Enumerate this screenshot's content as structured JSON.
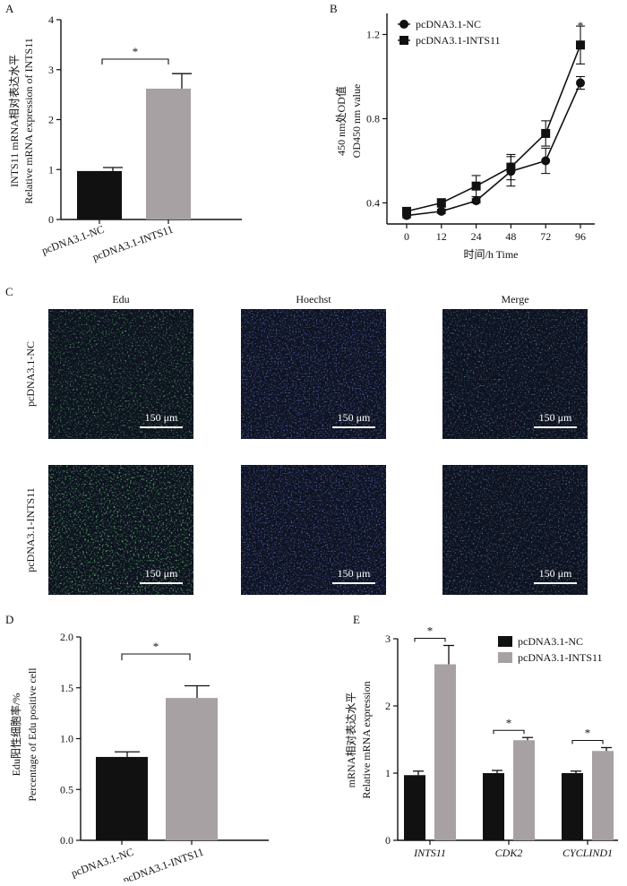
{
  "colors": {
    "nc": "#111111",
    "ints": "#a7a1a3",
    "edu_green": "#2fa03a",
    "hoechst_blue": "#2a3bd0",
    "micro_bg": "#0e1220"
  },
  "panels": {
    "A": {
      "letter": "A",
      "sig": "*"
    },
    "B": {
      "letter": "B",
      "sig": "*"
    },
    "C": {
      "letter": "C",
      "columns": [
        "Edu",
        "Hoechst",
        "Merge"
      ],
      "rows": [
        "pcDNA3.1-NC",
        "pcDNA3.1-INTS11"
      ],
      "scale_label": "150 μm",
      "stain_colors": [
        "edu_green",
        "hoechst_blue",
        "merge"
      ]
    },
    "D": {
      "letter": "D",
      "sig": "*"
    },
    "E": {
      "letter": "E",
      "sig": "*"
    }
  },
  "chart_data": [
    {
      "id": "A",
      "type": "bar",
      "categories": [
        "pcDNA3.1-NC",
        "pcDNA3.1-INTS11"
      ],
      "values": [
        0.97,
        2.62
      ],
      "errors": [
        0.07,
        0.3
      ],
      "ylabel_cn": "INTS11 mRNA相对表达水平",
      "ylabel_en": "Relative mRNA expression of INTS11",
      "ylim": [
        0,
        4
      ],
      "yticks": [
        0,
        1,
        2,
        3,
        4
      ],
      "significance": "*"
    },
    {
      "id": "B",
      "type": "line",
      "x": [
        0,
        12,
        24,
        48,
        72,
        96
      ],
      "xlabel": "时间/h Time",
      "ylabel_cn": "450 nm处OD值",
      "ylabel_en": "OD450 nm value",
      "ylim": [
        0.3,
        1.3
      ],
      "yticks": [
        0.4,
        0.8,
        1.2
      ],
      "legend_position": "top-left",
      "series": [
        {
          "name": "pcDNA3.1-NC",
          "marker": "circle",
          "values": [
            0.34,
            0.36,
            0.41,
            0.55,
            0.6,
            0.97
          ],
          "errors": [
            0.01,
            0.01,
            0.01,
            0.07,
            0.06,
            0.03
          ]
        },
        {
          "name": "pcDNA3.1-INTS11",
          "marker": "square",
          "values": [
            0.36,
            0.4,
            0.48,
            0.57,
            0.73,
            1.15
          ],
          "errors": [
            0.01,
            0.02,
            0.05,
            0.06,
            0.06,
            0.09
          ]
        }
      ],
      "significance": "*"
    },
    {
      "id": "D",
      "type": "bar",
      "categories": [
        "pcDNA3.1-NC",
        "pcDNA3.1-INTS11"
      ],
      "values": [
        0.82,
        1.4
      ],
      "errors": [
        0.05,
        0.12
      ],
      "ylabel_cn": "Edu阳性细胞率/%",
      "ylabel_en": "Percentage of Edu positive cell",
      "ylim": [
        0,
        2.0
      ],
      "yticks": [
        "0.0",
        "0.5",
        "1.0",
        "1.5",
        "2.0"
      ],
      "significance": "*"
    },
    {
      "id": "E",
      "type": "bar",
      "categories": [
        "INTS11",
        "CDK2",
        "CYCLIND1"
      ],
      "ylabel_cn": "mRNA相对表达水平",
      "ylabel_en": "Relative mRNA expression",
      "ylim": [
        0,
        3
      ],
      "yticks": [
        0,
        1,
        2,
        3
      ],
      "legend_position": "top-right",
      "series": [
        {
          "name": "pcDNA3.1-NC",
          "values": [
            0.97,
            1.0,
            1.0
          ],
          "errors": [
            0.06,
            0.04,
            0.03
          ]
        },
        {
          "name": "pcDNA3.1-INTS11",
          "values": [
            2.62,
            1.49,
            1.33
          ],
          "errors": [
            0.28,
            0.04,
            0.05
          ]
        }
      ],
      "significance": [
        "*",
        "*",
        "*"
      ]
    }
  ]
}
